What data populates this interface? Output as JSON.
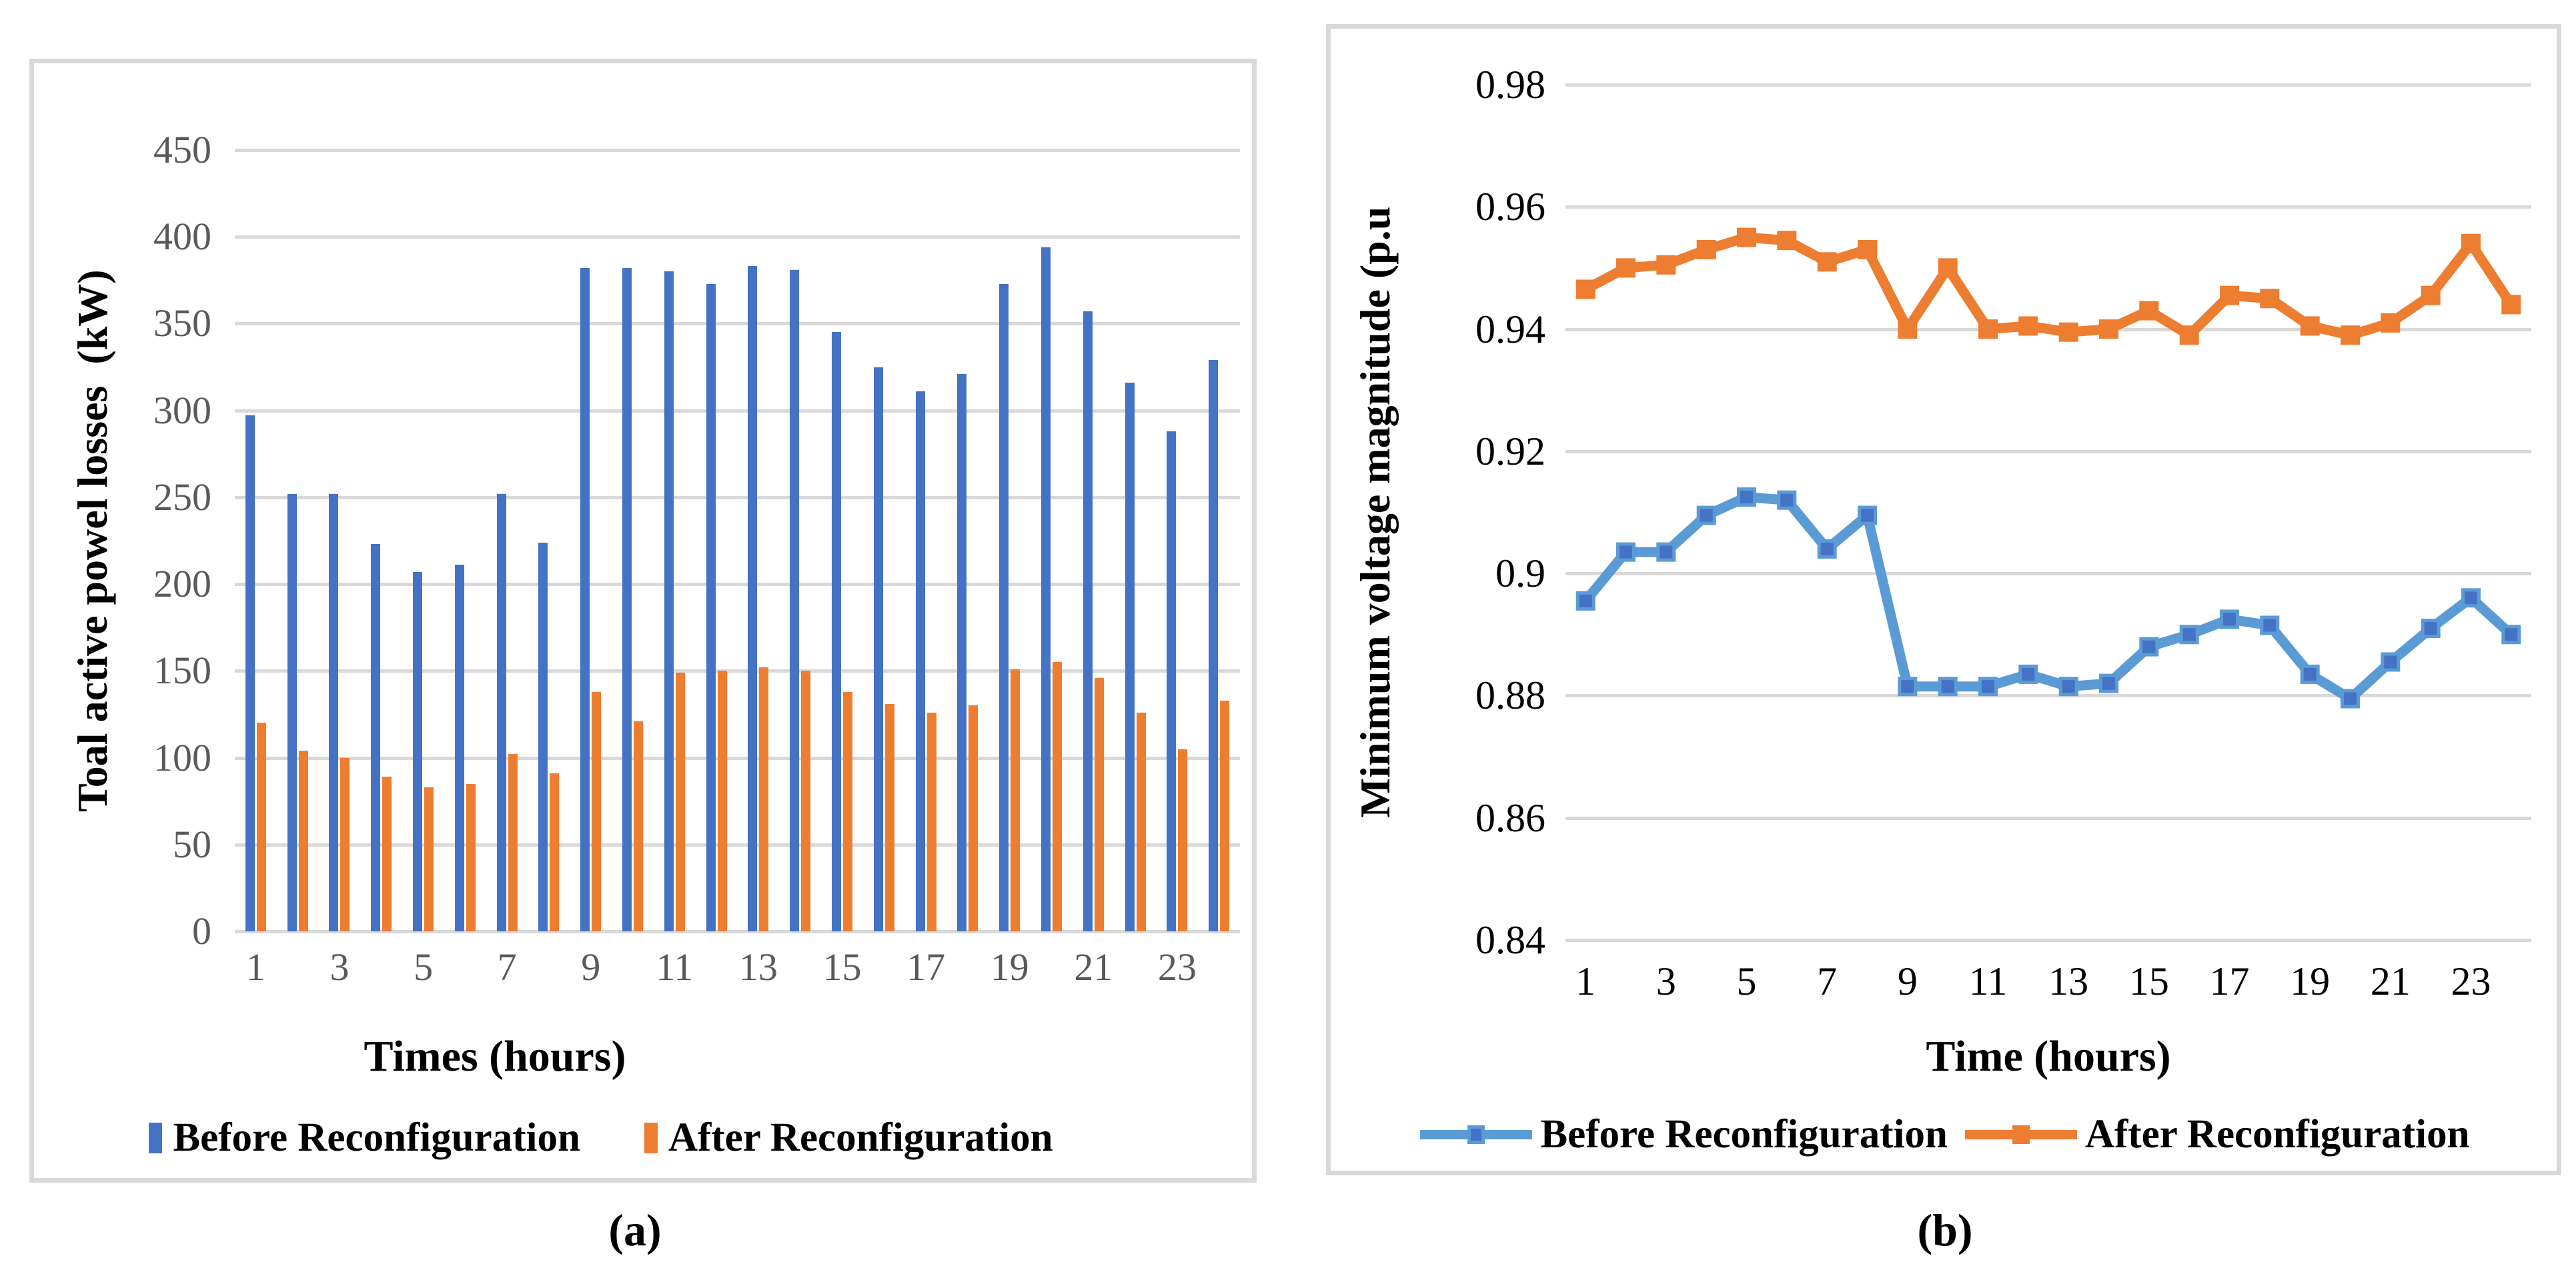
{
  "figure": {
    "caption_a": "(a)",
    "caption_b": "(b)"
  },
  "colors": {
    "bar_before": "#4472C4",
    "bar_after": "#ED7D31",
    "line_before": "#5B9BD5",
    "line_before_marker": "#4472C4",
    "line_after": "#ED7D31",
    "line_after_marker": "#ED7D31",
    "gridline": "#D9D9D9",
    "panel_border": "#D9D9D9",
    "tick_gray": "#595959",
    "tick_black": "#000000"
  },
  "chart_data": [
    {
      "id": "a",
      "type": "bar",
      "xlabel": "Times (hours)",
      "ylabel": "Toal active powel losses  (kW)",
      "ylim": [
        0,
        450
      ],
      "y_ticks": [
        "450",
        "400",
        "350",
        "300",
        "250",
        "200",
        "150",
        "100",
        "50",
        "0"
      ],
      "categories": [
        1,
        2,
        3,
        4,
        5,
        6,
        7,
        8,
        9,
        10,
        11,
        12,
        13,
        14,
        15,
        16,
        17,
        18,
        19,
        20,
        21,
        22,
        23,
        24
      ],
      "x_tick_labels": [
        "1",
        "3",
        "5",
        "7",
        "9",
        "11",
        "13",
        "15",
        "17",
        "19",
        "21",
        "23"
      ],
      "grid": true,
      "legend_position": "bottom",
      "series": [
        {
          "name": "Before Reconfiguration",
          "color": "#4472C4",
          "values": [
            297,
            252,
            252,
            223,
            207,
            211,
            252,
            224,
            382,
            382,
            380,
            373,
            383,
            381,
            345,
            325,
            311,
            321,
            373,
            394,
            357,
            316,
            288,
            329
          ]
        },
        {
          "name": "After Reconfiguration",
          "color": "#ED7D31",
          "values": [
            120,
            104,
            100,
            89,
            83,
            85,
            102,
            91,
            138,
            121,
            149,
            150,
            152,
            150,
            138,
            131,
            126,
            130,
            151,
            155,
            146,
            126,
            105,
            133
          ]
        }
      ]
    },
    {
      "id": "b",
      "type": "line",
      "xlabel": "Time (hours)",
      "ylabel": "Minimum voltage magnitude (p.u",
      "ylim": [
        0.84,
        0.98
      ],
      "y_ticks": [
        "0.98",
        "0.96",
        "0.94",
        "0.92",
        "0.9",
        "0.88",
        "0.86",
        "0.84"
      ],
      "categories": [
        1,
        2,
        3,
        4,
        5,
        6,
        7,
        8,
        9,
        10,
        11,
        12,
        13,
        14,
        15,
        16,
        17,
        18,
        19,
        20,
        21,
        22,
        23,
        24
      ],
      "x_tick_labels": [
        "1",
        "3",
        "5",
        "7",
        "9",
        "11",
        "13",
        "15",
        "17",
        "19",
        "21",
        "23"
      ],
      "grid": true,
      "legend_position": "bottom",
      "series": [
        {
          "name": "Before Reconfiguration",
          "line_color": "#5B9BD5",
          "marker_color": "#4472C4",
          "values": [
            0.8955,
            0.9035,
            0.9035,
            0.9095,
            0.9125,
            0.912,
            0.904,
            0.9095,
            0.8815,
            0.8815,
            0.8815,
            0.8835,
            0.8815,
            0.882,
            0.888,
            0.89,
            0.8925,
            0.8915,
            0.8835,
            0.8795,
            0.8855,
            0.891,
            0.896,
            0.89
          ]
        },
        {
          "name": "After Reconfiguration",
          "line_color": "#ED7D31",
          "marker_color": "#ED7D31",
          "values": [
            0.9465,
            0.95,
            0.9505,
            0.953,
            0.955,
            0.9545,
            0.951,
            0.953,
            0.94,
            0.95,
            0.94,
            0.9405,
            0.9395,
            0.94,
            0.943,
            0.939,
            0.9455,
            0.945,
            0.9405,
            0.939,
            0.941,
            0.9455,
            0.954,
            0.944
          ]
        }
      ]
    }
  ]
}
